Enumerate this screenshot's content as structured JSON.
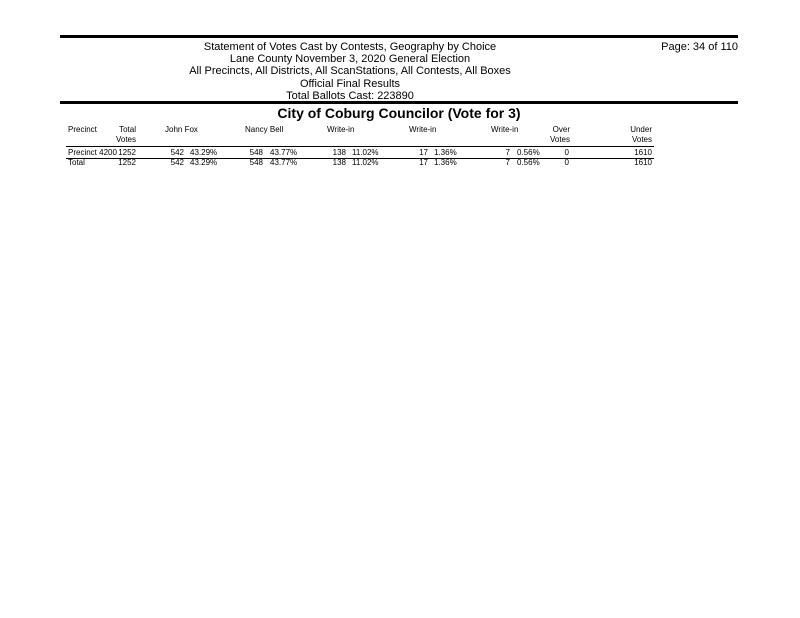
{
  "header": {
    "lines": [
      "Statement of Votes Cast by Contests, Geography by Choice",
      "Lane County November 3, 2020 General Election",
      "All Precincts, All Districts, All ScanStations, All Contests, All Boxes",
      "Official Final Results",
      "Total Ballots Cast: 223890"
    ],
    "page": "Page: 34 of 110"
  },
  "contest": {
    "title": "City of Coburg Councilor (Vote for 3)"
  },
  "columns": [
    "Precinct",
    "Total Votes",
    "John Fox",
    "Nancy Bell",
    "Write-in",
    "Write-in",
    "Write-in",
    "Over Votes",
    "Under Votes"
  ],
  "rows": [
    {
      "precinct": "Precinct 4200",
      "total": "1252",
      "c1": "542",
      "p1": "43.29%",
      "c2": "548",
      "p2": "43.77%",
      "c3": "138",
      "p3": "11.02%",
      "c4": "17",
      "p4": "1.36%",
      "c5": "7",
      "p5": "0.56%",
      "over": "0",
      "under": "1610"
    },
    {
      "precinct": "Total",
      "total": "1252",
      "c1": "542",
      "p1": "43.29%",
      "c2": "548",
      "p2": "43.77%",
      "c3": "138",
      "p3": "11.02%",
      "c4": "17",
      "p4": "1.36%",
      "c5": "7",
      "p5": "0.56%",
      "over": "0",
      "under": "1610"
    }
  ]
}
